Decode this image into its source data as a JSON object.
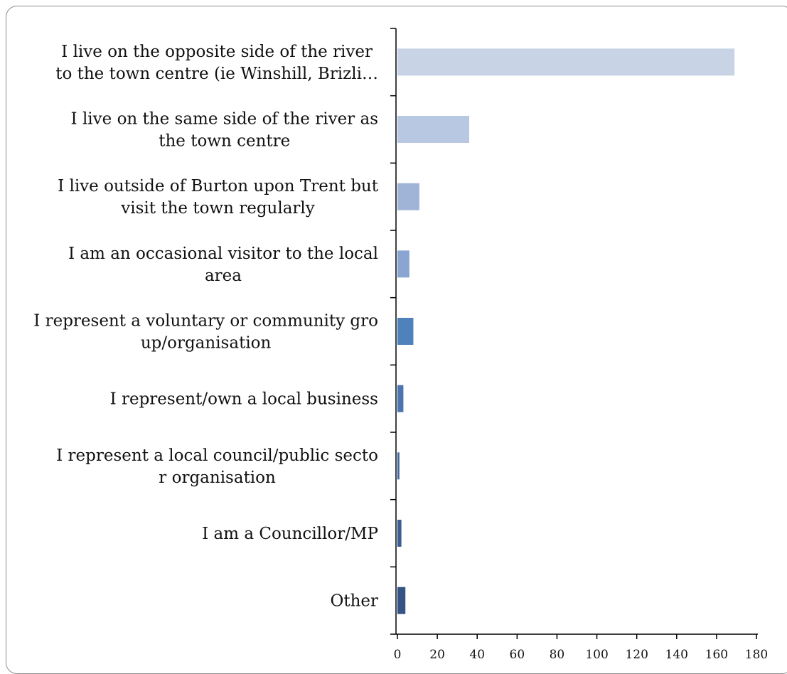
{
  "chart_data": {
    "type": "bar",
    "orientation": "horizontal",
    "categories": [
      [
        "I live on the opposite side of the river",
        "to the town centre (ie Winshill, Brizli…"
      ],
      [
        "I live on the same side of the river as",
        "the town centre"
      ],
      [
        "I live outside of Burton upon Trent but",
        "visit the town regularly"
      ],
      [
        "I am an occasional visitor to the local",
        "area"
      ],
      [
        "I represent a voluntary or community gro",
        "up/organisation"
      ],
      [
        "I represent/own a local business"
      ],
      [
        "I represent a local council/public secto",
        "r organisation"
      ],
      [
        "I am a Councillor/MP"
      ],
      [
        "Other"
      ]
    ],
    "values": [
      169,
      36,
      11,
      6,
      8,
      3,
      1,
      2,
      4
    ],
    "colors": [
      "#c8d3e6",
      "#b8c7e2",
      "#a0b4d8",
      "#8aa5d2",
      "#4f81bd",
      "#4a75b0",
      "#3f66a1",
      "#3a5d94",
      "#355385"
    ],
    "xlim": [
      0,
      180
    ],
    "xticks": [
      0,
      20,
      40,
      60,
      80,
      100,
      120,
      140,
      160,
      180
    ],
    "grid": false,
    "legend": "none",
    "title": "",
    "xlabel": "",
    "ylabel": ""
  }
}
